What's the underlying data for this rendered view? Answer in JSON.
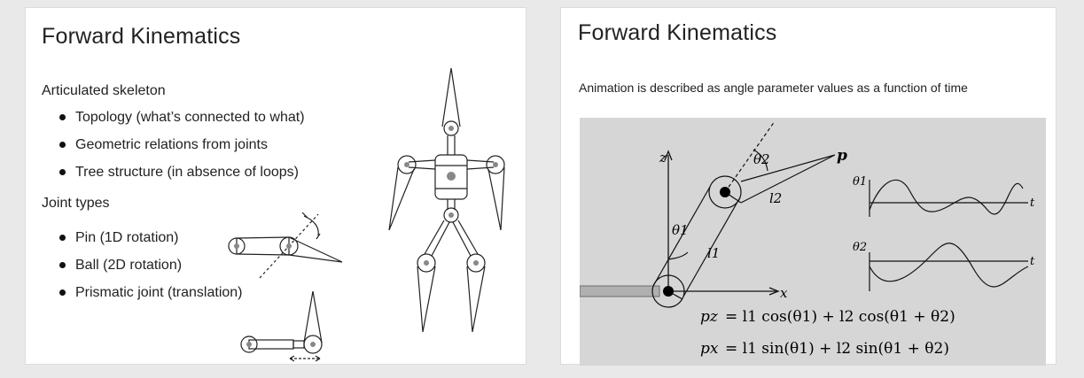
{
  "left_slide": {
    "title": "Forward Kinematics",
    "section1_heading": "Articulated skeleton",
    "section1_items": [
      "Topology (what’s connected to what)",
      "Geometric relations from joints",
      "Tree structure (in absence of loops)"
    ],
    "section2_heading": "Joint types",
    "section2_items": [
      "Pin (1D rotation)",
      "Ball (2D rotation)",
      "Prismatic joint (translation)"
    ]
  },
  "right_slide": {
    "title": "Forward Kinematics",
    "caption": "Animation is described as angle parameter values as a function of time",
    "diagram": {
      "axis_z": "z",
      "axis_x": "x",
      "point_p": "p",
      "theta1": "θ1",
      "theta2": "θ2",
      "l1": "l1",
      "l2": "l2",
      "plot1_ylabel": "θ1",
      "plot2_ylabel": "θ2",
      "plot_xlabel": "t",
      "eq1_lhs": "pz",
      "eq1_rhs": "= l1 cos(θ1) + l2 cos(θ1 + θ2)",
      "eq2_lhs": "px",
      "eq2_rhs": "= l1 sin(θ1) + l2 sin(θ1 + θ2)"
    }
  }
}
